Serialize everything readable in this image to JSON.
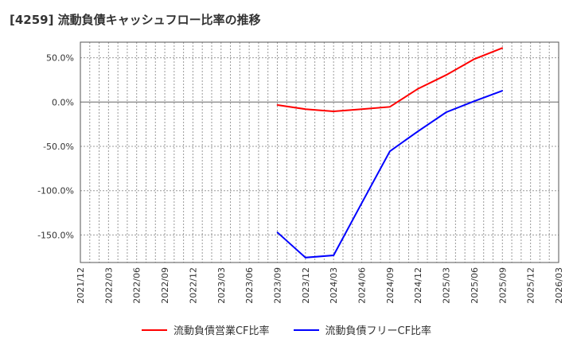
{
  "chart_data": {
    "type": "line",
    "title": "[4259]  流動負債キャッシュフロー比率の推移",
    "xlabel": "",
    "ylabel": "",
    "x_ticks": [
      "2021/12",
      "2022/03",
      "2022/06",
      "2022/09",
      "2022/12",
      "2023/03",
      "2023/06",
      "2023/09",
      "2023/12",
      "2024/03",
      "2024/06",
      "2024/09",
      "2024/12",
      "2025/03",
      "2025/06",
      "2025/09",
      "2025/12",
      "2026/03"
    ],
    "y_ticks": [
      50,
      0,
      -50,
      -100,
      -150
    ],
    "y_tick_labels": [
      "50.0%",
      "0.0%",
      "-50.0%",
      "-100.0%",
      "-150.0%"
    ],
    "ylim": [
      -182,
      68
    ],
    "grid": true,
    "legend_position": "bottom",
    "x": [
      "2023/09",
      "2023/12",
      "2024/03",
      "2024/06",
      "2024/09",
      "2024/12",
      "2025/03",
      "2025/06",
      "2025/09"
    ],
    "series": [
      {
        "name": "流動負債営業CF比率",
        "color": "#ff0000",
        "values": [
          -3.3,
          -8.0,
          -10.5,
          -8.0,
          -5.4,
          15.0,
          30.5,
          48.5,
          61.0
        ]
      },
      {
        "name": "流動負債フリーCF比率",
        "color": "#0000ff",
        "values": [
          -147,
          -175.5,
          -173,
          -114,
          -55.5,
          -33,
          -11.5,
          1,
          12.8
        ]
      }
    ]
  }
}
